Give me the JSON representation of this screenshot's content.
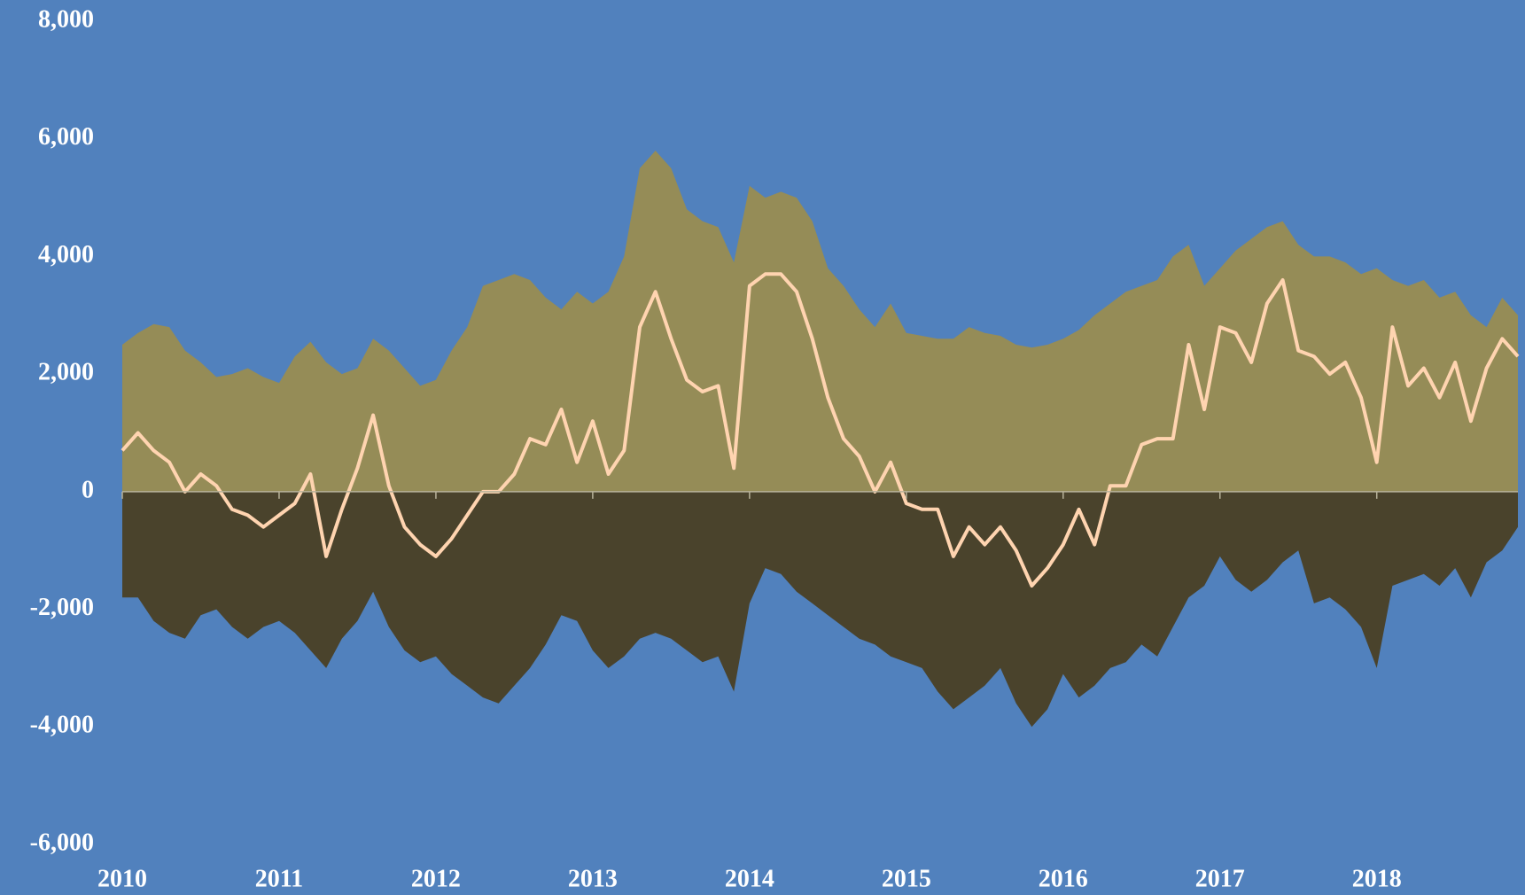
{
  "chart_data": {
    "type": "area",
    "x": [
      2010.0,
      2010.1,
      2010.2,
      2010.3,
      2010.4,
      2010.5,
      2010.6,
      2010.7,
      2010.8,
      2010.9,
      2011.0,
      2011.1,
      2011.2,
      2011.3,
      2011.4,
      2011.5,
      2011.6,
      2011.7,
      2011.8,
      2011.9,
      2012.0,
      2012.1,
      2012.2,
      2012.3,
      2012.4,
      2012.5,
      2012.6,
      2012.7,
      2012.8,
      2012.9,
      2013.0,
      2013.1,
      2013.2,
      2013.3,
      2013.4,
      2013.5,
      2013.6,
      2013.7,
      2013.8,
      2013.9,
      2014.0,
      2014.1,
      2014.2,
      2014.3,
      2014.4,
      2014.5,
      2014.6,
      2014.7,
      2014.8,
      2014.9,
      2015.0,
      2015.1,
      2015.2,
      2015.3,
      2015.4,
      2015.5,
      2015.6,
      2015.7,
      2015.8,
      2015.9,
      2016.0,
      2016.1,
      2016.2,
      2016.3,
      2016.4,
      2016.5,
      2016.6,
      2016.7,
      2016.8,
      2016.9,
      2017.0,
      2017.1,
      2017.2,
      2017.3,
      2017.4,
      2017.5,
      2017.6,
      2017.7,
      2017.8,
      2017.9,
      2018.0,
      2018.1,
      2018.2,
      2018.3,
      2018.4,
      2018.5,
      2018.6,
      2018.7,
      2018.8,
      2018.9
    ],
    "series": [
      {
        "color": "#958c57",
        "values": [
          2500,
          2700,
          2850,
          2800,
          2400,
          2200,
          1950,
          2000,
          2100,
          1950,
          1850,
          2300,
          2550,
          2200,
          2000,
          2100,
          2600,
          2400,
          2100,
          1800,
          1900,
          2400,
          2800,
          3500,
          3600,
          3700,
          3600,
          3300,
          3100,
          3400,
          3200,
          3400,
          4000,
          5500,
          5800,
          5500,
          4800,
          4600,
          4500,
          3900,
          5200,
          5000,
          5100,
          5000,
          4600,
          3800,
          3500,
          3100,
          2800,
          3200,
          2700,
          2650,
          2600,
          2600,
          2800,
          2700,
          2650,
          2500,
          2450,
          2500,
          2600,
          2750,
          3000,
          3200,
          3400,
          3500,
          3600,
          4000,
          4200,
          3500,
          3800,
          4100,
          4300,
          4500,
          4600,
          4200,
          4000,
          4000,
          3900,
          3700,
          3800,
          3600,
          3500,
          3600,
          3300,
          3400,
          3000,
          2800,
          3300,
          3000
        ]
      },
      {
        "color": "#4a432c",
        "values": [
          -1800,
          -1800,
          -2200,
          -2400,
          -2500,
          -2100,
          -2000,
          -2300,
          -2500,
          -2300,
          -2200,
          -2400,
          -2700,
          -3000,
          -2500,
          -2200,
          -1700,
          -2300,
          -2700,
          -2900,
          -2800,
          -3100,
          -3300,
          -3500,
          -3600,
          -3300,
          -3000,
          -2600,
          -2100,
          -2200,
          -2700,
          -3000,
          -2800,
          -2500,
          -2400,
          -2500,
          -2700,
          -2900,
          -2800,
          -3400,
          -1900,
          -1300,
          -1400,
          -1700,
          -1900,
          -2100,
          -2300,
          -2500,
          -2600,
          -2800,
          -2900,
          -3000,
          -3400,
          -3700,
          -3500,
          -3300,
          -3000,
          -3600,
          -4000,
          -3700,
          -3100,
          -3500,
          -3300,
          -3000,
          -2900,
          -2600,
          -2800,
          -2300,
          -1800,
          -1600,
          -1100,
          -1500,
          -1700,
          -1500,
          -1200,
          -1000,
          -1900,
          -1800,
          -2000,
          -2300,
          -3000,
          -1600,
          -1500,
          -1400,
          -1600,
          -1300,
          -1800,
          -1200,
          -1000,
          -600
        ]
      },
      {
        "type": "line",
        "color": "#ffd4b0",
        "values": [
          700,
          1000,
          700,
          500,
          0,
          300,
          100,
          -300,
          -400,
          -600,
          -400,
          -200,
          300,
          -1100,
          -300,
          400,
          1300,
          100,
          -600,
          -900,
          -1100,
          -800,
          -400,
          0,
          0,
          300,
          900,
          800,
          1400,
          500,
          1200,
          300,
          700,
          2800,
          3400,
          2600,
          1900,
          1700,
          1800,
          400,
          3500,
          3700,
          3700,
          3400,
          2600,
          1600,
          900,
          600,
          0,
          500,
          -200,
          -300,
          -300,
          -1100,
          -600,
          -900,
          -600,
          -1000,
          -1600,
          -1300,
          -900,
          -300,
          -900,
          100,
          100,
          800,
          900,
          900,
          2500,
          1400,
          2800,
          2700,
          2200,
          3200,
          3600,
          2400,
          2300,
          2000,
          2200,
          1600,
          500,
          2800,
          1800,
          2100,
          1600,
          2200,
          1200,
          2100,
          2600,
          2300
        ]
      }
    ],
    "xlim": [
      2010,
      2018.9
    ],
    "xticks": [
      2010,
      2011,
      2012,
      2013,
      2014,
      2015,
      2016,
      2017,
      2018
    ],
    "ylim": [
      -6000,
      8000
    ],
    "yticks": [
      {
        "value": -6000,
        "label": "-6,000"
      },
      {
        "value": -4000,
        "label": "-4,000"
      },
      {
        "value": -2000,
        "label": "-2,000"
      },
      0,
      {
        "value": 2000,
        "label": "2,000"
      },
      {
        "value": 4000,
        "label": "4,000"
      },
      {
        "value": 6000,
        "label": "6,000"
      },
      {
        "value": 8000,
        "label": "8,000"
      }
    ],
    "grid": false
  }
}
